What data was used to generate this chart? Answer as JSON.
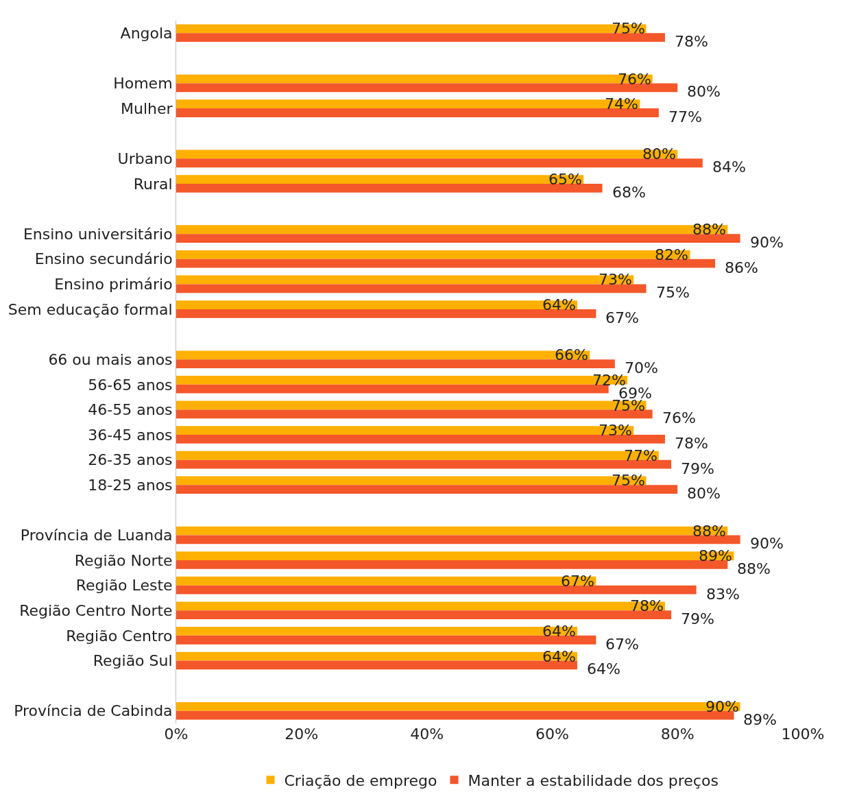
{
  "chart_data": {
    "type": "bar",
    "orientation": "horizontal",
    "categories": [
      "Angola",
      null,
      "Homem",
      "Mulher",
      null,
      "Urbano",
      "Rural",
      null,
      "Ensino universitário",
      "Ensino secundário",
      "Ensino primário",
      "Sem educação formal",
      null,
      "66 ou mais anos",
      "56-65 anos",
      "46-55 anos",
      "36-45 anos",
      "26-35 anos",
      "18-25 anos",
      null,
      "Província de Luanda",
      "Região Norte",
      "Região Leste",
      "Região Centro Norte",
      "Região Centro",
      "Região Sul",
      null,
      "Província de Cabinda"
    ],
    "series": [
      {
        "name": "Criação de emprego",
        "color": "#ffb000",
        "values": [
          75,
          null,
          76,
          74,
          null,
          80,
          65,
          null,
          88,
          82,
          73,
          64,
          null,
          66,
          72,
          75,
          73,
          77,
          75,
          null,
          88,
          89,
          67,
          78,
          64,
          64,
          null,
          90
        ],
        "value_labels": [
          "75%",
          null,
          "76%",
          "74%",
          null,
          "80%",
          "65%",
          null,
          "88%",
          "82%",
          "73%",
          "64%",
          null,
          "66%",
          "72%",
          "75%",
          "73%",
          "77%",
          "75%",
          null,
          "88%",
          "89%",
          "67%",
          "78%",
          "64%",
          "64%",
          null,
          "90%"
        ]
      },
      {
        "name": "Manter a estabilidade dos preços",
        "color": "#f4572a",
        "values": [
          78,
          null,
          80,
          77,
          null,
          84,
          68,
          null,
          90,
          86,
          75,
          67,
          null,
          70,
          69,
          76,
          78,
          79,
          80,
          null,
          90,
          88,
          83,
          79,
          67,
          64,
          null,
          89
        ],
        "value_labels": [
          "78%",
          null,
          "80%",
          "77%",
          null,
          "84%",
          "68%",
          null,
          "90%",
          "86%",
          "75%",
          "67%",
          null,
          "70%",
          "69%",
          "76%",
          "78%",
          "79%",
          "80%",
          null,
          "90%",
          "88%",
          "83%",
          "79%",
          "67%",
          "64%",
          null,
          "89%"
        ]
      }
    ],
    "xlim": [
      0,
      100
    ],
    "xticks": [
      {
        "value": 0,
        "label": "0%"
      },
      {
        "value": 20,
        "label": "20%"
      },
      {
        "value": 40,
        "label": "40%"
      },
      {
        "value": 60,
        "label": "60%"
      },
      {
        "value": 80,
        "label": "80%"
      },
      {
        "value": 100,
        "label": "100%"
      }
    ],
    "legend": "bottom"
  }
}
